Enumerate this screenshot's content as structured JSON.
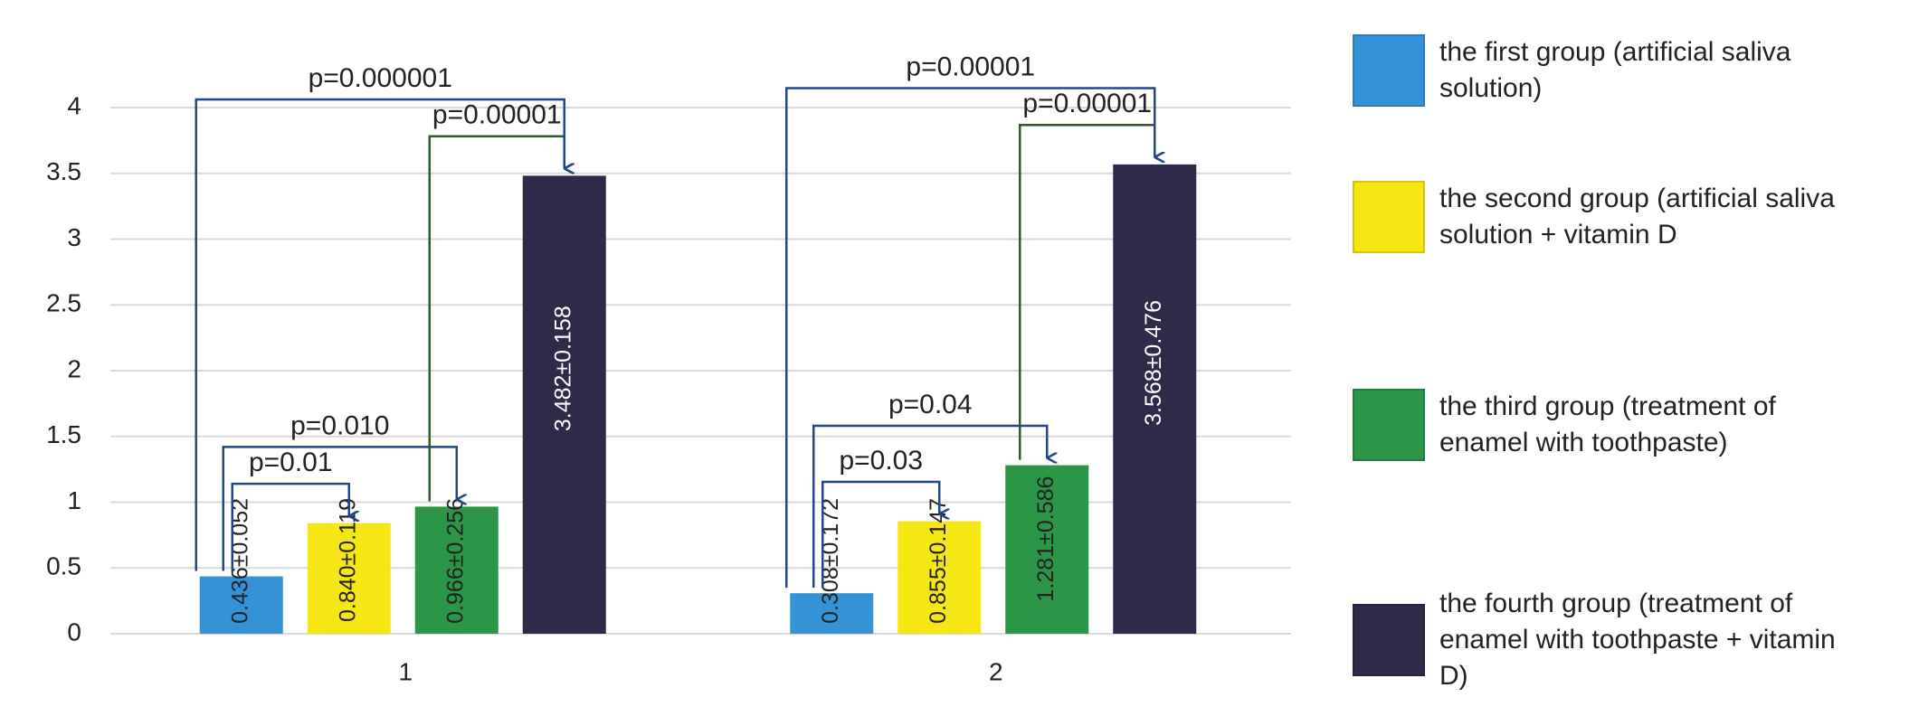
{
  "chart_data": {
    "type": "bar",
    "categories": [
      "1",
      "2"
    ],
    "series": [
      {
        "name": "the first group (artificial saliva solution)",
        "color": "#3393d6",
        "label_color": "#222",
        "values": [
          0.436,
          0.308
        ],
        "value_labels": [
          "0.436±0.052",
          "0.308±0.172"
        ]
      },
      {
        "name": "the second group (artificial saliva solution + vitamin D",
        "color": "#f5e614",
        "label_color": "#222",
        "values": [
          0.84,
          0.855
        ],
        "value_labels": [
          "0.840±0.119",
          "0.855±0.147"
        ]
      },
      {
        "name": "the third group (treatment of enamel with toothpaste)",
        "color": "#2a9646",
        "label_color": "#222",
        "values": [
          0.966,
          1.281
        ],
        "value_labels": [
          "0.966±0.256",
          "1.281±0.586"
        ]
      },
      {
        "name": "the fourth group (treatment of enamel with toothpaste + vitamin D)",
        "color": "#2d2a4a",
        "label_color": "#ffffff",
        "values": [
          3.482,
          3.568
        ],
        "value_labels": [
          "3.482±0.158",
          "3.568±0.476"
        ]
      }
    ],
    "comparisons": [
      {
        "category": 0,
        "from": 0,
        "to": 1,
        "label": "p=0.01",
        "color": "#23468a"
      },
      {
        "category": 0,
        "from": 0,
        "to": 2,
        "label": "p=0.010",
        "color": "#23468a"
      },
      {
        "category": 0,
        "from": 2,
        "to": 3,
        "label": "p=0.00001",
        "color": "#2c5a2c"
      },
      {
        "category": 0,
        "from": 0,
        "to": 3,
        "label": "p=0.000001",
        "color": "#23468a"
      },
      {
        "category": 1,
        "from": 0,
        "to": 1,
        "label": "p=0.03",
        "color": "#23468a"
      },
      {
        "category": 1,
        "from": 0,
        "to": 2,
        "label": "p=0.04",
        "color": "#23468a"
      },
      {
        "category": 1,
        "from": 2,
        "to": 3,
        "label": "p=0.00001",
        "color": "#2c5a2c"
      },
      {
        "category": 1,
        "from": 0,
        "to": 3,
        "label": "p=0.00001",
        "color": "#23468a"
      }
    ],
    "ylim": [
      0,
      4
    ],
    "yticks": [
      0,
      0.5,
      1,
      1.5,
      2,
      2.5,
      3,
      3.5,
      4
    ],
    "grid": true
  }
}
